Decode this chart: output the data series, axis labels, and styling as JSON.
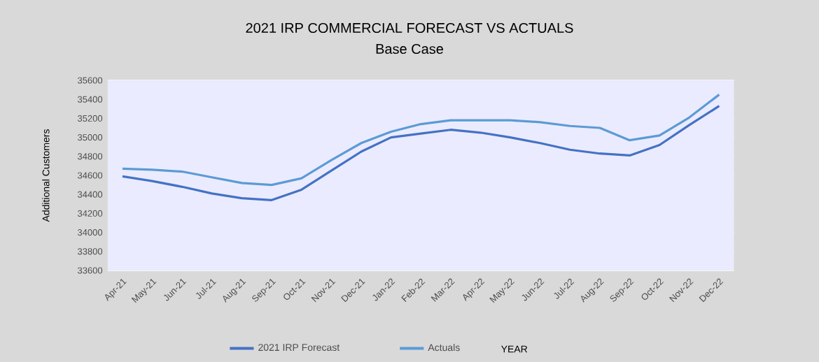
{
  "chart_data": {
    "type": "line",
    "title": "2021 IRP COMMERCIAL FORECAST VS ACTUALS",
    "subtitle": "Base Case",
    "xlabel": "YEAR",
    "ylabel": "Additional Customers",
    "categories": [
      "Apr-21",
      "May-21",
      "Jun-21",
      "Jul-21",
      "Aug-21",
      "Sep-21",
      "Oct-21",
      "Nov-21",
      "Dec-21",
      "Jan-22",
      "Feb-22",
      "Mar-22",
      "Apr-22",
      "May-22",
      "Jun-22",
      "Jul-22",
      "Aug-22",
      "Sep-22",
      "Oct-22",
      "Nov-22",
      "Dec-22"
    ],
    "series": [
      {
        "name": "2021 IRP Forecast",
        "color": "#4472c4",
        "values": [
          34590,
          34540,
          34480,
          34410,
          34360,
          34340,
          34450,
          34650,
          34850,
          35000,
          35040,
          35080,
          35050,
          35000,
          34940,
          34870,
          34830,
          34810,
          34920,
          35130,
          35330
        ]
      },
      {
        "name": "Actuals",
        "color": "#5b9bd5",
        "values": [
          34670,
          34660,
          34640,
          34580,
          34520,
          34500,
          34570,
          34760,
          34940,
          35060,
          35140,
          35180,
          35180,
          35180,
          35160,
          35120,
          35100,
          34970,
          35020,
          35210,
          35450
        ]
      }
    ],
    "ylim": [
      33600,
      35600
    ],
    "yticks": [
      33600,
      33800,
      34000,
      34200,
      34400,
      34600,
      34800,
      35000,
      35200,
      35400,
      35600
    ],
    "grid": "y",
    "legend": "bottom",
    "marker": "none",
    "line_style": "solid"
  }
}
